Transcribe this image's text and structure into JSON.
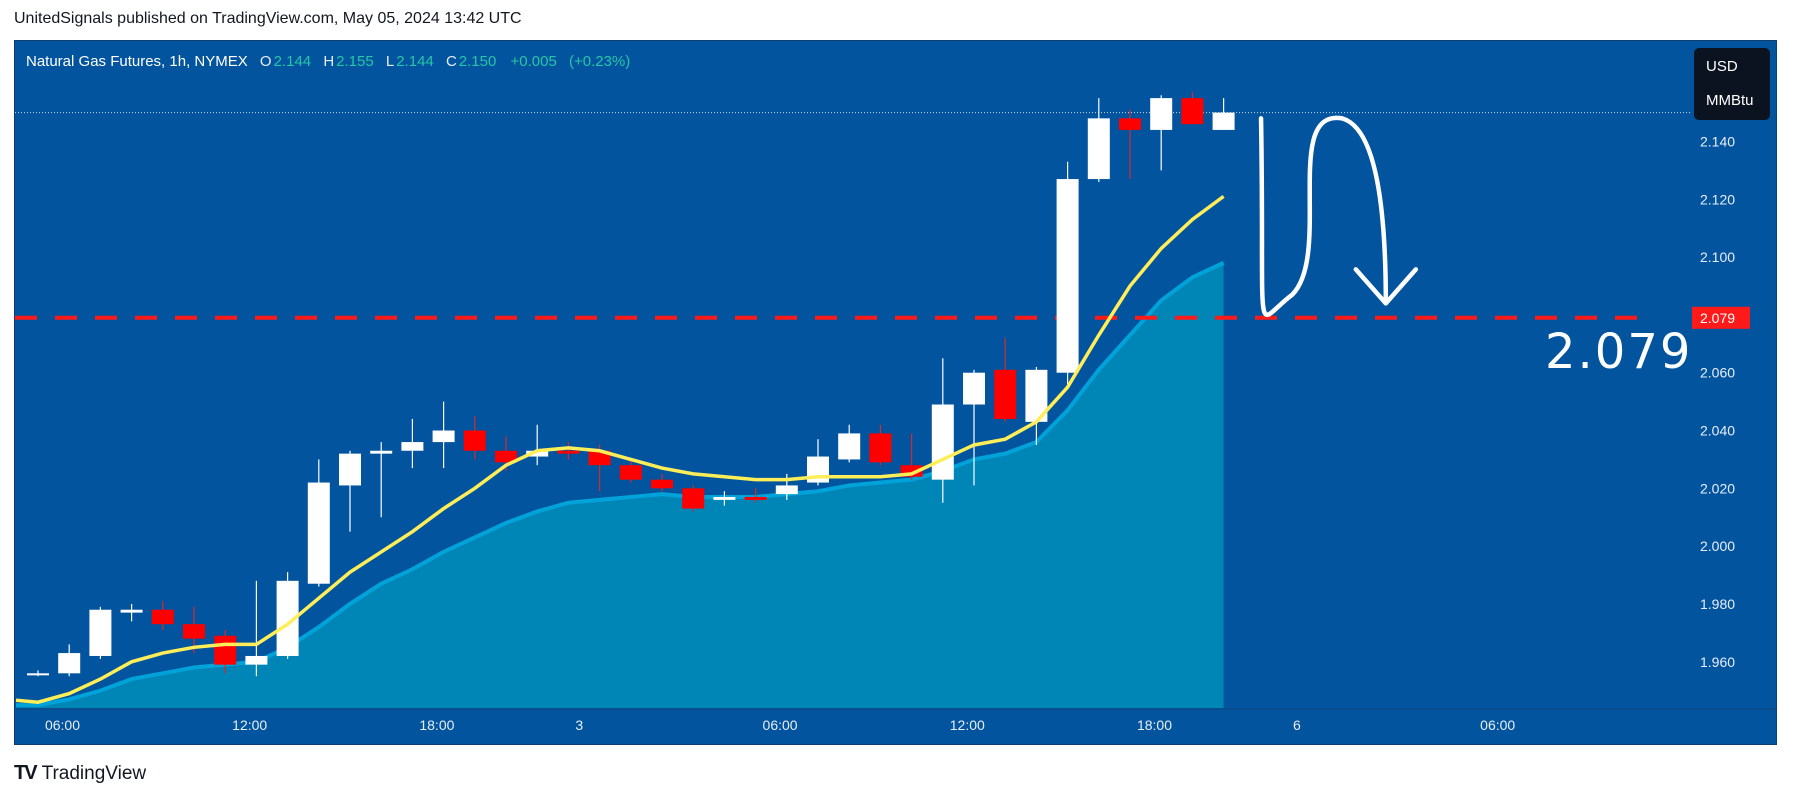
{
  "publisher_line": "UnitedSignals published on TradingView.com, May 05, 2024 13:42 UTC",
  "legend": {
    "symbol": "Natural Gas Futures, 1h, NYMEX",
    "o_label": "O",
    "o_value": "2.144",
    "h_label": "H",
    "h_value": "2.155",
    "l_label": "L",
    "l_value": "2.144",
    "c_label": "C",
    "c_value": "2.150",
    "change": "+0.005",
    "change_pct": "(+0.23%)"
  },
  "unit_box": {
    "currency": "USD",
    "unit": "MMBtu"
  },
  "price_tag": "2.079",
  "big_label": "2.079",
  "brand": {
    "name": "TradingView",
    "logo_mark": "TV"
  },
  "colors": {
    "background": "#03549e",
    "bull_candle": "#ffffff",
    "bear_candle": "#ff0000",
    "ma_line": "#ffee58",
    "area_fill": "#0088b8",
    "area_line": "#00a3d9",
    "dashed_level": "#ff1a1a",
    "text": "#ffffff"
  },
  "chart_data": {
    "type": "candlestick",
    "timeframe": "1h",
    "ylim": [
      1.944,
      2.163
    ],
    "y_ticks": [
      "2.140",
      "2.120",
      "2.100",
      "2.080",
      "2.060",
      "2.040",
      "2.020",
      "2.000",
      "1.980",
      "1.960"
    ],
    "x_ticks": [
      {
        "label": "06:00",
        "index": 0.8
      },
      {
        "label": "12:00",
        "index": 6.8
      },
      {
        "label": "18:00",
        "index": 12.8
      },
      {
        "label": "3",
        "index": 17.8
      },
      {
        "label": "06:00",
        "index": 23.8
      },
      {
        "label": "12:00",
        "index": 29.8
      },
      {
        "label": "18:00",
        "index": 35.8
      },
      {
        "label": "6",
        "index": 40.8
      },
      {
        "label": "06:00",
        "index": 46.8
      }
    ],
    "candles": [
      {
        "o": 1.956,
        "h": 1.957,
        "l": 1.955,
        "c": 1.956
      },
      {
        "o": 1.956,
        "h": 1.966,
        "l": 1.955,
        "c": 1.963
      },
      {
        "o": 1.962,
        "h": 1.979,
        "l": 1.961,
        "c": 1.978
      },
      {
        "o": 1.977,
        "h": 1.98,
        "l": 1.974,
        "c": 1.978
      },
      {
        "o": 1.978,
        "h": 1.981,
        "l": 1.971,
        "c": 1.973
      },
      {
        "o": 1.973,
        "h": 1.979,
        "l": 1.963,
        "c": 1.968
      },
      {
        "o": 1.969,
        "h": 1.971,
        "l": 1.956,
        "c": 1.959
      },
      {
        "o": 1.959,
        "h": 1.988,
        "l": 1.955,
        "c": 1.962
      },
      {
        "o": 1.962,
        "h": 1.991,
        "l": 1.961,
        "c": 1.988
      },
      {
        "o": 1.987,
        "h": 2.03,
        "l": 1.986,
        "c": 2.022
      },
      {
        "o": 2.021,
        "h": 2.033,
        "l": 2.005,
        "c": 2.032
      },
      {
        "o": 2.032,
        "h": 2.036,
        "l": 2.01,
        "c": 2.033
      },
      {
        "o": 2.033,
        "h": 2.044,
        "l": 2.027,
        "c": 2.036
      },
      {
        "o": 2.036,
        "h": 2.05,
        "l": 2.027,
        "c": 2.04
      },
      {
        "o": 2.04,
        "h": 2.045,
        "l": 2.03,
        "c": 2.033
      },
      {
        "o": 2.033,
        "h": 2.038,
        "l": 2.026,
        "c": 2.029
      },
      {
        "o": 2.031,
        "h": 2.042,
        "l": 2.028,
        "c": 2.033
      },
      {
        "o": 2.033,
        "h": 2.036,
        "l": 2.03,
        "c": 2.032
      },
      {
        "o": 2.033,
        "h": 2.035,
        "l": 2.019,
        "c": 2.028
      },
      {
        "o": 2.028,
        "h": 2.03,
        "l": 2.022,
        "c": 2.023
      },
      {
        "o": 2.023,
        "h": 2.025,
        "l": 2.019,
        "c": 2.02
      },
      {
        "o": 2.02,
        "h": 2.021,
        "l": 2.012,
        "c": 2.013
      },
      {
        "o": 2.016,
        "h": 2.019,
        "l": 2.014,
        "c": 2.017
      },
      {
        "o": 2.017,
        "h": 2.02,
        "l": 2.015,
        "c": 2.016
      },
      {
        "o": 2.018,
        "h": 2.025,
        "l": 2.016,
        "c": 2.021
      },
      {
        "o": 2.022,
        "h": 2.037,
        "l": 2.021,
        "c": 2.031
      },
      {
        "o": 2.03,
        "h": 2.042,
        "l": 2.029,
        "c": 2.039
      },
      {
        "o": 2.039,
        "h": 2.042,
        "l": 2.028,
        "c": 2.029
      },
      {
        "o": 2.028,
        "h": 2.039,
        "l": 2.023,
        "c": 2.024
      },
      {
        "o": 2.023,
        "h": 2.065,
        "l": 2.015,
        "c": 2.049
      },
      {
        "o": 2.049,
        "h": 2.061,
        "l": 2.021,
        "c": 2.06
      },
      {
        "o": 2.061,
        "h": 2.072,
        "l": 2.043,
        "c": 2.044
      },
      {
        "o": 2.043,
        "h": 2.062,
        "l": 2.035,
        "c": 2.061
      },
      {
        "o": 2.06,
        "h": 2.133,
        "l": 2.056,
        "c": 2.127
      },
      {
        "o": 2.127,
        "h": 2.155,
        "l": 2.126,
        "c": 2.148
      },
      {
        "o": 2.148,
        "h": 2.151,
        "l": 2.127,
        "c": 2.144
      },
      {
        "o": 2.144,
        "h": 2.156,
        "l": 2.13,
        "c": 2.155
      },
      {
        "o": 2.155,
        "h": 2.157,
        "l": 2.146,
        "c": 2.146
      },
      {
        "o": 2.144,
        "h": 2.155,
        "l": 2.144,
        "c": 2.15
      }
    ],
    "moving_average": {
      "color": "#ffee58",
      "points": [
        [
          0,
          1.946
        ],
        [
          1,
          1.949
        ],
        [
          2,
          1.954
        ],
        [
          3,
          1.96
        ],
        [
          4,
          1.963
        ],
        [
          5,
          1.965
        ],
        [
          6,
          1.966
        ],
        [
          7,
          1.966
        ],
        [
          8,
          1.973
        ],
        [
          9,
          1.982
        ],
        [
          10,
          1.991
        ],
        [
          11,
          1.998
        ],
        [
          12,
          2.005
        ],
        [
          13,
          2.013
        ],
        [
          14,
          2.02
        ],
        [
          15,
          2.028
        ],
        [
          16,
          2.033
        ],
        [
          17,
          2.034
        ],
        [
          18,
          2.033
        ],
        [
          19,
          2.03
        ],
        [
          20,
          2.027
        ],
        [
          21,
          2.025
        ],
        [
          22,
          2.024
        ],
        [
          23,
          2.023
        ],
        [
          24,
          2.023
        ],
        [
          25,
          2.024
        ],
        [
          26,
          2.024
        ],
        [
          27,
          2.024
        ],
        [
          28,
          2.025
        ],
        [
          29,
          2.03
        ],
        [
          30,
          2.035
        ],
        [
          31,
          2.037
        ],
        [
          32,
          2.043
        ],
        [
          33,
          2.055
        ],
        [
          34,
          2.073
        ],
        [
          35,
          2.09
        ],
        [
          36,
          2.103
        ],
        [
          37,
          2.113
        ],
        [
          38,
          2.121
        ]
      ]
    },
    "area_series": {
      "color": "#00a3d9",
      "points": [
        [
          0,
          1.945
        ],
        [
          1,
          1.947
        ],
        [
          2,
          1.95
        ],
        [
          3,
          1.954
        ],
        [
          4,
          1.956
        ],
        [
          5,
          1.958
        ],
        [
          6,
          1.959
        ],
        [
          7,
          1.96
        ],
        [
          8,
          1.965
        ],
        [
          9,
          1.972
        ],
        [
          10,
          1.98
        ],
        [
          11,
          1.987
        ],
        [
          12,
          1.992
        ],
        [
          13,
          1.998
        ],
        [
          14,
          2.003
        ],
        [
          15,
          2.008
        ],
        [
          16,
          2.012
        ],
        [
          17,
          2.015
        ],
        [
          18,
          2.016
        ],
        [
          19,
          2.017
        ],
        [
          20,
          2.018
        ],
        [
          21,
          2.017
        ],
        [
          22,
          2.017
        ],
        [
          23,
          2.017
        ],
        [
          24,
          2.018
        ],
        [
          25,
          2.019
        ],
        [
          26,
          2.021
        ],
        [
          27,
          2.022
        ],
        [
          28,
          2.023
        ],
        [
          29,
          2.026
        ],
        [
          30,
          2.03
        ],
        [
          31,
          2.032
        ],
        [
          32,
          2.036
        ],
        [
          33,
          2.047
        ],
        [
          34,
          2.061
        ],
        [
          35,
          2.073
        ],
        [
          36,
          2.085
        ],
        [
          37,
          2.093
        ],
        [
          38,
          2.098
        ]
      ]
    },
    "horizontal_level": 2.079,
    "last_price": 2.15,
    "annotation_path": {
      "description_points": [
        [
          39.2,
          2.148
        ],
        [
          40.2,
          2.087
        ],
        [
          41.8,
          2.148
        ],
        [
          43.2,
          2.084
        ]
      ],
      "arrow_target": [
        43.2,
        2.084
      ]
    }
  }
}
